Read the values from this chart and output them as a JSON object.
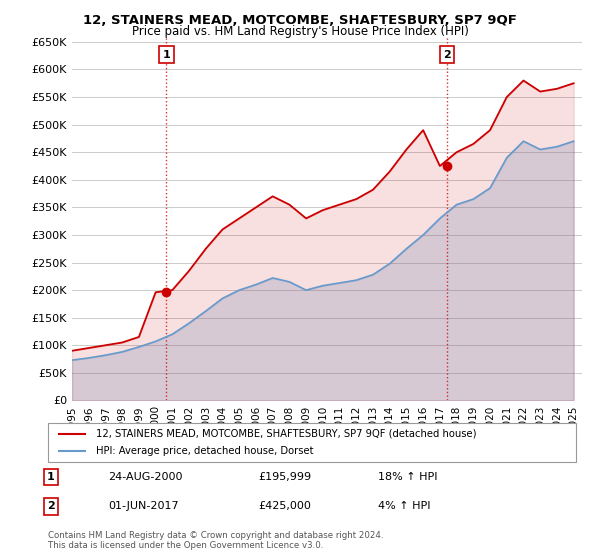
{
  "title": "12, STAINERS MEAD, MOTCOMBE, SHAFTESBURY, SP7 9QF",
  "subtitle": "Price paid vs. HM Land Registry's House Price Index (HPI)",
  "xlabel": "",
  "ylabel": "",
  "ylim": [
    0,
    660000
  ],
  "yticks": [
    0,
    50000,
    100000,
    150000,
    200000,
    250000,
    300000,
    350000,
    400000,
    450000,
    500000,
    550000,
    600000,
    650000
  ],
  "xlim_start": 1995.5,
  "xlim_end": 2025.5,
  "xticks": [
    1995,
    1996,
    1997,
    1998,
    1999,
    2000,
    2001,
    2002,
    2003,
    2004,
    2005,
    2006,
    2007,
    2008,
    2009,
    2010,
    2011,
    2012,
    2013,
    2014,
    2015,
    2016,
    2017,
    2018,
    2019,
    2020,
    2021,
    2022,
    2023,
    2024,
    2025
  ],
  "legend_line1": "12, STAINERS MEAD, MOTCOMBE, SHAFTESBURY, SP7 9QF (detached house)",
  "legend_line2": "HPI: Average price, detached house, Dorset",
  "line1_color": "#cc0000",
  "line2_color": "#6699cc",
  "annotation1_num": "1",
  "annotation1_date": "24-AUG-2000",
  "annotation1_price": "£195,999",
  "annotation1_hpi": "18% ↑ HPI",
  "annotation2_num": "2",
  "annotation2_date": "01-JUN-2017",
  "annotation2_price": "£425,000",
  "annotation2_hpi": "4% ↑ HPI",
  "footer": "Contains HM Land Registry data © Crown copyright and database right 2024.\nThis data is licensed under the Open Government Licence v3.0.",
  "bg_color": "#ffffff",
  "grid_color": "#cccccc",
  "hpi_years": [
    1995,
    1996,
    1997,
    1998,
    1999,
    2000,
    2001,
    2002,
    2003,
    2004,
    2005,
    2006,
    2007,
    2008,
    2009,
    2010,
    2011,
    2012,
    2013,
    2014,
    2015,
    2016,
    2017,
    2018,
    2019,
    2020,
    2021,
    2022,
    2023,
    2024,
    2025
  ],
  "hpi_values": [
    73000,
    77000,
    82000,
    88000,
    97000,
    107000,
    120000,
    140000,
    162000,
    185000,
    200000,
    210000,
    222000,
    215000,
    200000,
    208000,
    213000,
    218000,
    228000,
    248000,
    275000,
    300000,
    330000,
    355000,
    365000,
    385000,
    440000,
    470000,
    455000,
    460000,
    470000
  ],
  "price_years": [
    1995,
    1996,
    1997,
    1998,
    1999,
    2000,
    2001,
    2002,
    2003,
    2004,
    2005,
    2006,
    2007,
    2008,
    2009,
    2010,
    2011,
    2012,
    2013,
    2014,
    2015,
    2016,
    2017,
    2018,
    2019,
    2020,
    2021,
    2022,
    2023,
    2024,
    2025
  ],
  "price_values": [
    90000,
    95000,
    100000,
    105000,
    115000,
    196000,
    200000,
    235000,
    275000,
    310000,
    330000,
    350000,
    370000,
    355000,
    330000,
    345000,
    355000,
    365000,
    382000,
    415000,
    455000,
    490000,
    425000,
    450000,
    465000,
    490000,
    550000,
    580000,
    560000,
    565000,
    575000
  ],
  "sale1_year": 2000.65,
  "sale1_price": 195999,
  "sale2_year": 2017.42,
  "sale2_price": 425000
}
